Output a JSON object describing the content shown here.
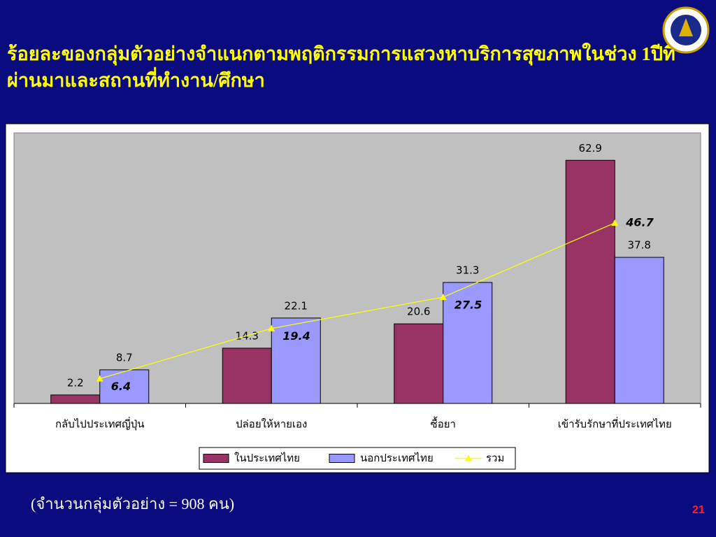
{
  "slide": {
    "title": "ร้อยละของกลุ่มตัวอย่างจำแนกตามพฤติกรรมการแสวงหาบริการสุขภาพในช่วง 1ปีที่ผ่านมาและสถานที่ทำงาน/ศึกษา",
    "note": "(จำนวนกลุ่มตัวอย่าง = 908  คน)",
    "page_number": "21"
  },
  "chart_data": {
    "type": "bar",
    "categories": [
      "กลับไปประเทศญี่ปุ่น",
      "ปล่อยให้หายเอง",
      "ซื้อยา",
      "เข้ารับรักษาที่ประเทศไทย"
    ],
    "series": [
      {
        "name": "ในประเทศไทย",
        "color": "#993366",
        "values": [
          2.2,
          14.3,
          20.6,
          62.9
        ]
      },
      {
        "name": "นอกประเทศไทย",
        "color": "#9999ff",
        "values": [
          8.7,
          22.1,
          31.3,
          37.8
        ]
      },
      {
        "name": "รวม",
        "color": "#ffff00",
        "type": "line",
        "values": [
          6.4,
          19.4,
          27.5,
          46.7
        ]
      }
    ],
    "ylim": [
      0,
      70
    ],
    "legend": "bottom",
    "plot_background": "#c0c0c0"
  }
}
